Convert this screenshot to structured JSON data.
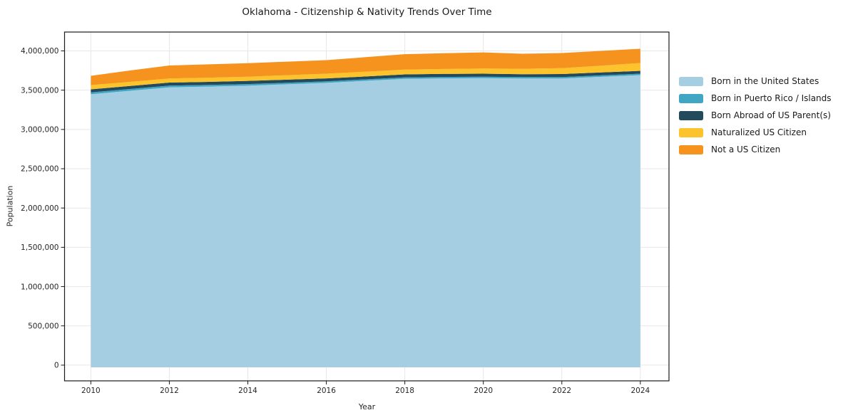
{
  "title": "Oklahoma - Citizenship & Nativity Trends Over Time",
  "axes": {
    "xlabel": "Year",
    "ylabel": "Population"
  },
  "legend": {
    "items": [
      {
        "label": "Born in the United States",
        "color": "#a6cee3"
      },
      {
        "label": "Born in Puerto Rico / Islands",
        "color": "#41a6c4"
      },
      {
        "label": "Born Abroad of US Parent(s)",
        "color": "#22495c"
      },
      {
        "label": "Naturalized US Citizen",
        "color": "#fcc32d"
      },
      {
        "label": "Not a US Citizen",
        "color": "#f6921e"
      }
    ]
  },
  "chart_data": {
    "type": "area",
    "stacked": true,
    "title": "Oklahoma - Citizenship & Nativity Trends Over Time",
    "xlabel": "Year",
    "ylabel": "Population",
    "x": [
      2010,
      2011,
      2012,
      2013,
      2014,
      2015,
      2016,
      2017,
      2018,
      2019,
      2020,
      2021,
      2022,
      2023,
      2024
    ],
    "series": [
      {
        "name": "Born in the United States",
        "color": "#a6cee3",
        "values": [
          3448000,
          3492000,
          3536000,
          3546000,
          3557000,
          3575000,
          3593000,
          3619000,
          3644000,
          3650000,
          3654000,
          3648000,
          3649000,
          3670000,
          3692000
        ]
      },
      {
        "name": "Born in Puerto Rico / Islands",
        "color": "#41a6c4",
        "values": [
          24000,
          23000,
          22000,
          21000,
          21000,
          20000,
          19000,
          18000,
          18000,
          18000,
          18000,
          18000,
          18000,
          18000,
          18000
        ]
      },
      {
        "name": "Born Abroad of US Parent(s)",
        "color": "#22495c",
        "values": [
          39000,
          39000,
          39000,
          39000,
          40000,
          39000,
          38000,
          38000,
          39000,
          39000,
          38000,
          38000,
          38000,
          37000,
          36000
        ]
      },
      {
        "name": "Naturalized US Citizen",
        "color": "#fcc32d",
        "values": [
          54000,
          52000,
          52000,
          53000,
          54000,
          57000,
          60000,
          60000,
          61000,
          63000,
          66000,
          68000,
          75000,
          87000,
          100000
        ]
      },
      {
        "name": "Not a US Citizen",
        "color": "#f6921e",
        "values": [
          118000,
          145000,
          165000,
          170000,
          172000,
          172000,
          172000,
          185000,
          196000,
          200000,
          205000,
          192000,
          193000,
          188000,
          181000
        ]
      }
    ],
    "xticks": [
      2010,
      2012,
      2014,
      2016,
      2018,
      2020,
      2022,
      2024
    ],
    "yticks": [
      0,
      500000,
      1000000,
      1500000,
      2000000,
      2500000,
      3000000,
      3500000,
      4000000
    ],
    "xlim": [
      2009.33,
      2024.73
    ],
    "ylim": [
      -200000,
      4240000
    ],
    "baseline": -28000,
    "grid": true,
    "legend_position": "right"
  }
}
